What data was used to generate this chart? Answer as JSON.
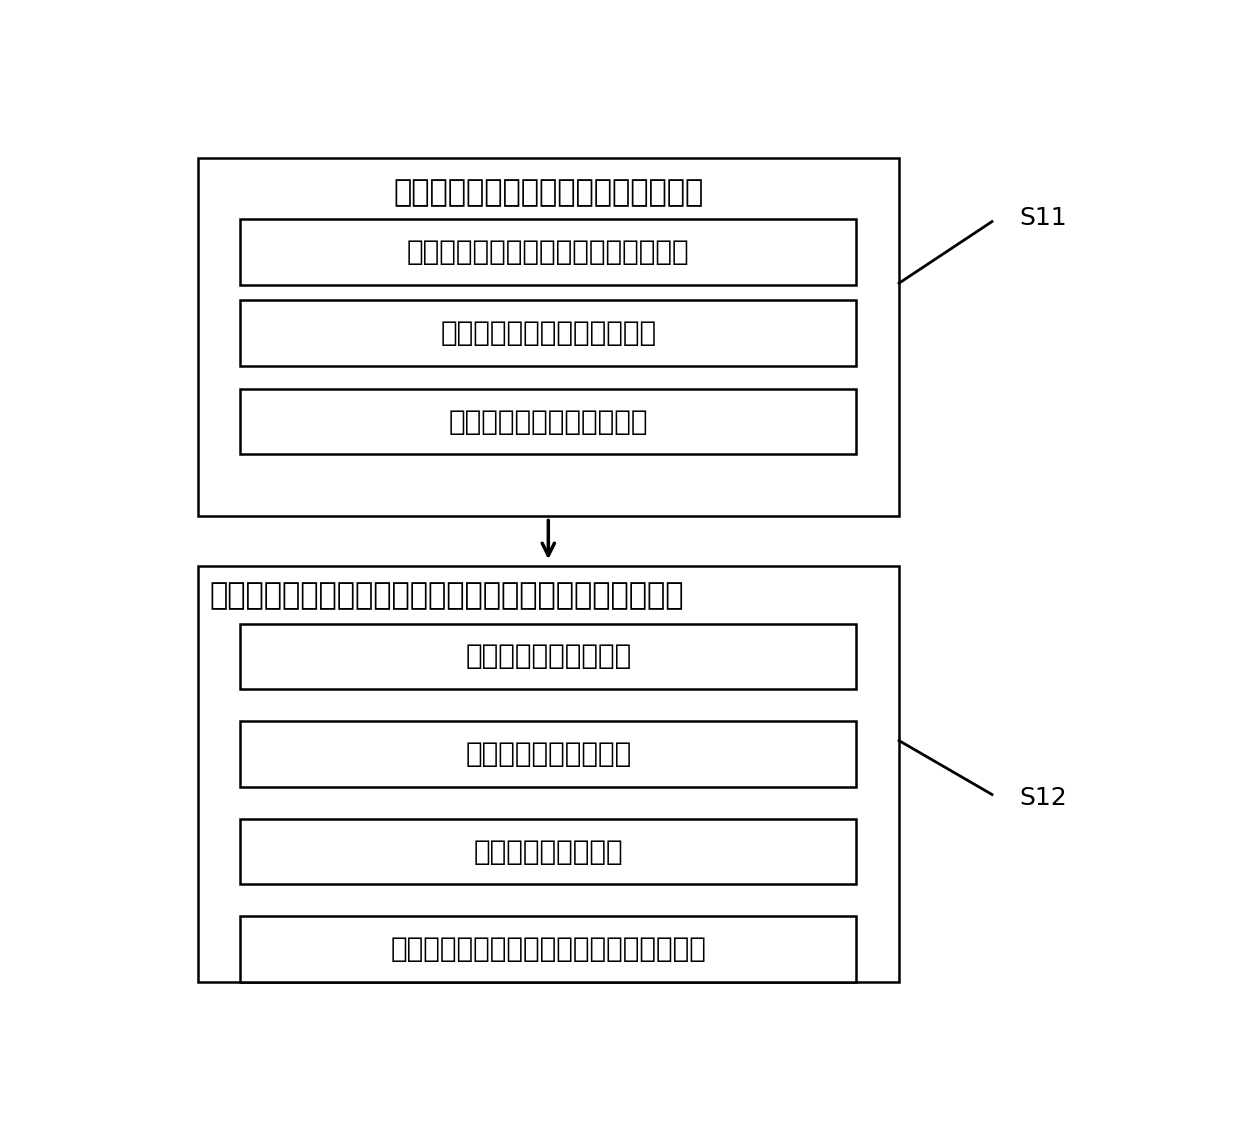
{
  "fig_width": 12.4,
  "fig_height": 11.23,
  "dpi": 100,
  "bg_color": "#ffffff",
  "box_edge_color": "#000000",
  "font_color": "#000000",
  "outer_box1_title": "建立循环水系统的动态模型和稳态模型",
  "inner_boxes1": [
    "建立循环水系统的水力模型和热力模型",
    "通过试验数据，修正模型参数",
    "建立循环水系统的稳态模型"
  ],
  "outer_box2_title": "根据生产过程工艺要求，设置被控变量和操作变量的优先级",
  "inner_boxes2": [
    "被控变量的优先级设置",
    "操作变量的优先级设置",
    "操作变量的效益方向",
    "操作变量与被控变量之间的相关性方向设置"
  ],
  "s11_label": "S11",
  "s12_label": "S12",
  "title_fontsize": 22,
  "label_fontsize": 20,
  "s_fontsize": 18
}
